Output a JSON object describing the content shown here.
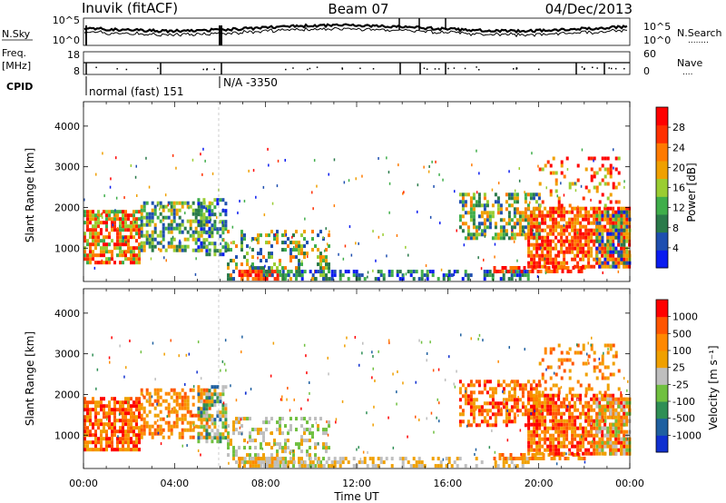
{
  "header": {
    "station": "Inuvik (fitACF)",
    "beam": "Beam 07",
    "date": "04/Dec/2013"
  },
  "noise_panel": {
    "left_label": "N.Sky",
    "right_label": "N.Search",
    "right_dots": "........",
    "left_ticks": [
      "10^5",
      "10^0"
    ],
    "right_ticks": [
      "10^5",
      "10^0"
    ]
  },
  "freq_panel": {
    "left_label_top": "Freq.",
    "left_label_bottom": "[MHz]",
    "right_label": "Nave",
    "right_dots": "....",
    "left_ticks": [
      "18",
      "8"
    ],
    "right_ticks": [
      "60",
      "0"
    ]
  },
  "cpid": {
    "label": "CPID",
    "segments": [
      {
        "text": "normal (fast) 151"
      },
      {
        "text": "N/A -3350"
      }
    ]
  },
  "colors": {
    "power_scale": [
      "#0a1cf0",
      "#1f4fb0",
      "#2a7a4a",
      "#3fae4a",
      "#9acd32",
      "#f0a000",
      "#ff7a00",
      "#ff3000",
      "#ff0000"
    ],
    "velocity_scale": [
      "#1030d0",
      "#1f60a0",
      "#2f8f55",
      "#70c040",
      "#bebebe",
      "#f0a000",
      "#ff8800",
      "#ff5500",
      "#ff0000"
    ]
  },
  "chart_data": [
    {
      "type": "heatmap",
      "name": "power",
      "ylabel": "Slant Range [km]",
      "yticks": [
        "1000",
        "2000",
        "3000",
        "4000"
      ],
      "ylim": [
        180,
        4600
      ],
      "xlim": [
        0,
        24
      ],
      "colorbar": {
        "label": "Power [dB]",
        "ticks": [
          "4",
          "8",
          "12",
          "16",
          "20",
          "24",
          "28"
        ]
      }
    },
    {
      "type": "heatmap",
      "name": "velocity",
      "ylabel": "Slant Range [km]",
      "yticks": [
        "1000",
        "2000",
        "3000",
        "4000"
      ],
      "ylim": [
        180,
        4600
      ],
      "xlim": [
        0,
        24
      ],
      "xlabel": "Time UT",
      "xticks": [
        "00:00",
        "04:00",
        "08:00",
        "12:00",
        "16:00",
        "20:00",
        "00:00"
      ],
      "colorbar": {
        "label": "Velocity [m s⁻¹]",
        "ticks": [
          "1000",
          "500",
          "100",
          "25",
          "-25",
          "-100",
          "-500",
          "-1000"
        ]
      }
    }
  ]
}
